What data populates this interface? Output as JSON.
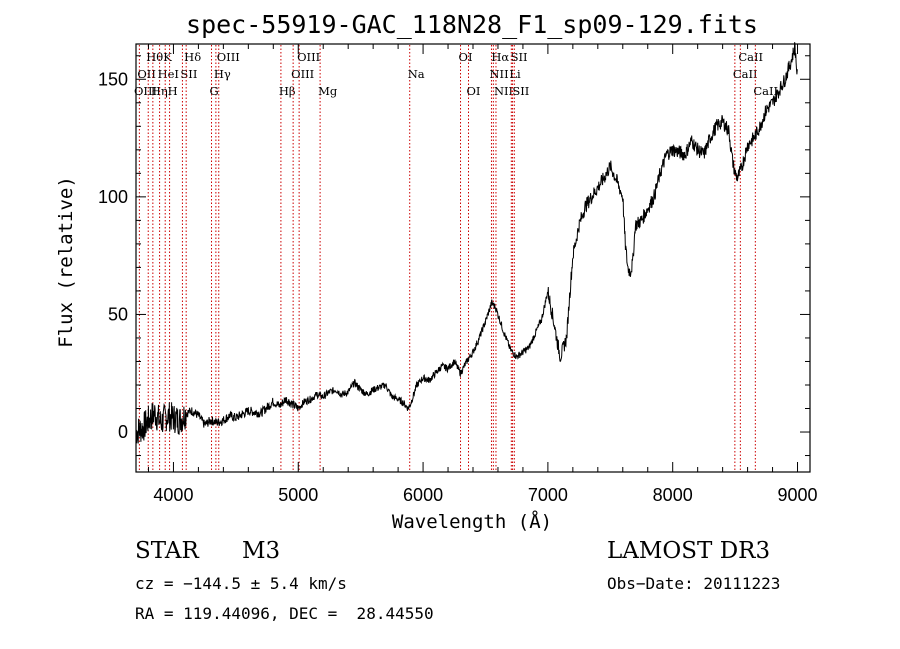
{
  "chart_data": {
    "type": "line",
    "title": "spec-55919-GAC_118N28_F1_sp09-129.fits",
    "xlabel": "Wavelength (Å)",
    "ylabel": "Flux (relative)",
    "xlim": [
      3700,
      9100
    ],
    "ylim": [
      -17,
      165
    ],
    "x_ticks": [
      4000,
      5000,
      6000,
      7000,
      8000,
      9000
    ],
    "y_ticks": [
      0,
      50,
      100,
      150
    ],
    "grid": false,
    "series": [
      {
        "name": "spectrum",
        "color": "#000000",
        "x": [
          3700,
          3760,
          3800,
          3850,
          3900,
          3950,
          4000,
          4050,
          4100,
          4150,
          4200,
          4250,
          4300,
          4350,
          4400,
          4450,
          4500,
          4600,
          4700,
          4800,
          4850,
          4900,
          4950,
          5000,
          5050,
          5100,
          5150,
          5200,
          5250,
          5300,
          5350,
          5400,
          5450,
          5500,
          5550,
          5600,
          5650,
          5700,
          5750,
          5800,
          5850,
          5880,
          5900,
          5950,
          6000,
          6050,
          6100,
          6150,
          6200,
          6250,
          6300,
          6350,
          6400,
          6450,
          6500,
          6550,
          6580,
          6600,
          6650,
          6700,
          6750,
          6800,
          6850,
          6900,
          6950,
          7000,
          7050,
          7080,
          7100,
          7150,
          7170,
          7200,
          7250,
          7300,
          7350,
          7400,
          7450,
          7500,
          7550,
          7600,
          7620,
          7640,
          7660,
          7680,
          7700,
          7750,
          7800,
          7850,
          7900,
          7950,
          8000,
          8050,
          8100,
          8150,
          8200,
          8250,
          8300,
          8350,
          8400,
          8450,
          8480,
          8500,
          8520,
          8550,
          8600,
          8650,
          8700,
          8750,
          8800,
          8850,
          8900,
          8950,
          8980,
          9000
        ],
        "y": [
          0,
          2,
          5,
          8,
          4,
          7,
          6,
          5,
          8,
          9,
          7,
          3,
          5,
          4,
          5,
          7,
          6,
          9,
          8,
          13,
          11,
          14,
          12,
          10,
          13,
          14,
          16,
          15,
          17,
          18,
          16,
          17,
          21,
          18,
          16,
          18,
          19,
          20,
          15,
          14,
          12,
          10,
          12,
          20,
          23,
          22,
          25,
          28,
          27,
          30,
          25,
          30,
          34,
          40,
          47,
          55,
          53,
          50,
          42,
          35,
          32,
          34,
          36,
          42,
          48,
          60,
          46,
          37,
          32,
          40,
          55,
          75,
          88,
          96,
          100,
          104,
          108,
          113,
          107,
          100,
          80,
          70,
          68,
          72,
          88,
          90,
          95,
          100,
          110,
          118,
          120,
          119,
          118,
          124,
          120,
          118,
          125,
          130,
          132,
          128,
          115,
          110,
          108,
          112,
          122,
          125,
          130,
          137,
          140,
          145,
          150,
          158,
          164,
          150
        ]
      }
    ],
    "spectral_lines": [
      {
        "label": "Hθ",
        "x": 3798,
        "row": 1
      },
      {
        "label": "OII",
        "x": 3727,
        "row": 2
      },
      {
        "label": "OIII",
        "x": 3700,
        "row": 3
      },
      {
        "label": "Hη",
        "x": 3835,
        "row": 3
      },
      {
        "label": "HeI",
        "x": 3889,
        "row": 2
      },
      {
        "label": "K",
        "x": 3934,
        "row": 1
      },
      {
        "label": "H",
        "x": 3969,
        "row": 3
      },
      {
        "label": "SII",
        "x": 4072,
        "row": 2
      },
      {
        "label": "Hδ",
        "x": 4102,
        "row": 1
      },
      {
        "label": "OIII",
        "x": 4363,
        "row": 1
      },
      {
        "label": "Hγ",
        "x": 4340,
        "row": 2
      },
      {
        "label": "G",
        "x": 4305,
        "row": 3
      },
      {
        "label": "Hβ",
        "x": 4861,
        "row": 3
      },
      {
        "label": "OIII",
        "x": 5007,
        "row": 1
      },
      {
        "label": "OIII",
        "x": 4959,
        "row": 2
      },
      {
        "label": "Mg",
        "x": 5175,
        "row": 3
      },
      {
        "label": "Na",
        "x": 5893,
        "row": 2
      },
      {
        "label": "OI",
        "x": 6300,
        "row": 1
      },
      {
        "label": "OI",
        "x": 6364,
        "row": 3
      },
      {
        "label": "Hα",
        "x": 6563,
        "row": 1
      },
      {
        "label": "NII",
        "x": 6548,
        "row": 2
      },
      {
        "label": "NII",
        "x": 6584,
        "row": 3
      },
      {
        "label": "SII",
        "x": 6717,
        "row": 1
      },
      {
        "label": "Li",
        "x": 6707,
        "row": 2
      },
      {
        "label": "SII",
        "x": 6731,
        "row": 3
      },
      {
        "label": "CaII",
        "x": 8542,
        "row": 1
      },
      {
        "label": "CaII",
        "x": 8498,
        "row": 2
      },
      {
        "label": "CaII",
        "x": 8662,
        "row": 3
      }
    ]
  },
  "info": {
    "object_class": "STAR",
    "subclass": "M3",
    "survey": "LAMOST DR3",
    "redshift": "cz = −144.5 ± 5.4 km/s",
    "obs_date": "Obs−Date: 20111223",
    "coords": "RA = 119.44096, DEC =  28.44550"
  },
  "colors": {
    "line_marker": "#cc0000",
    "spectrum": "#000000"
  }
}
